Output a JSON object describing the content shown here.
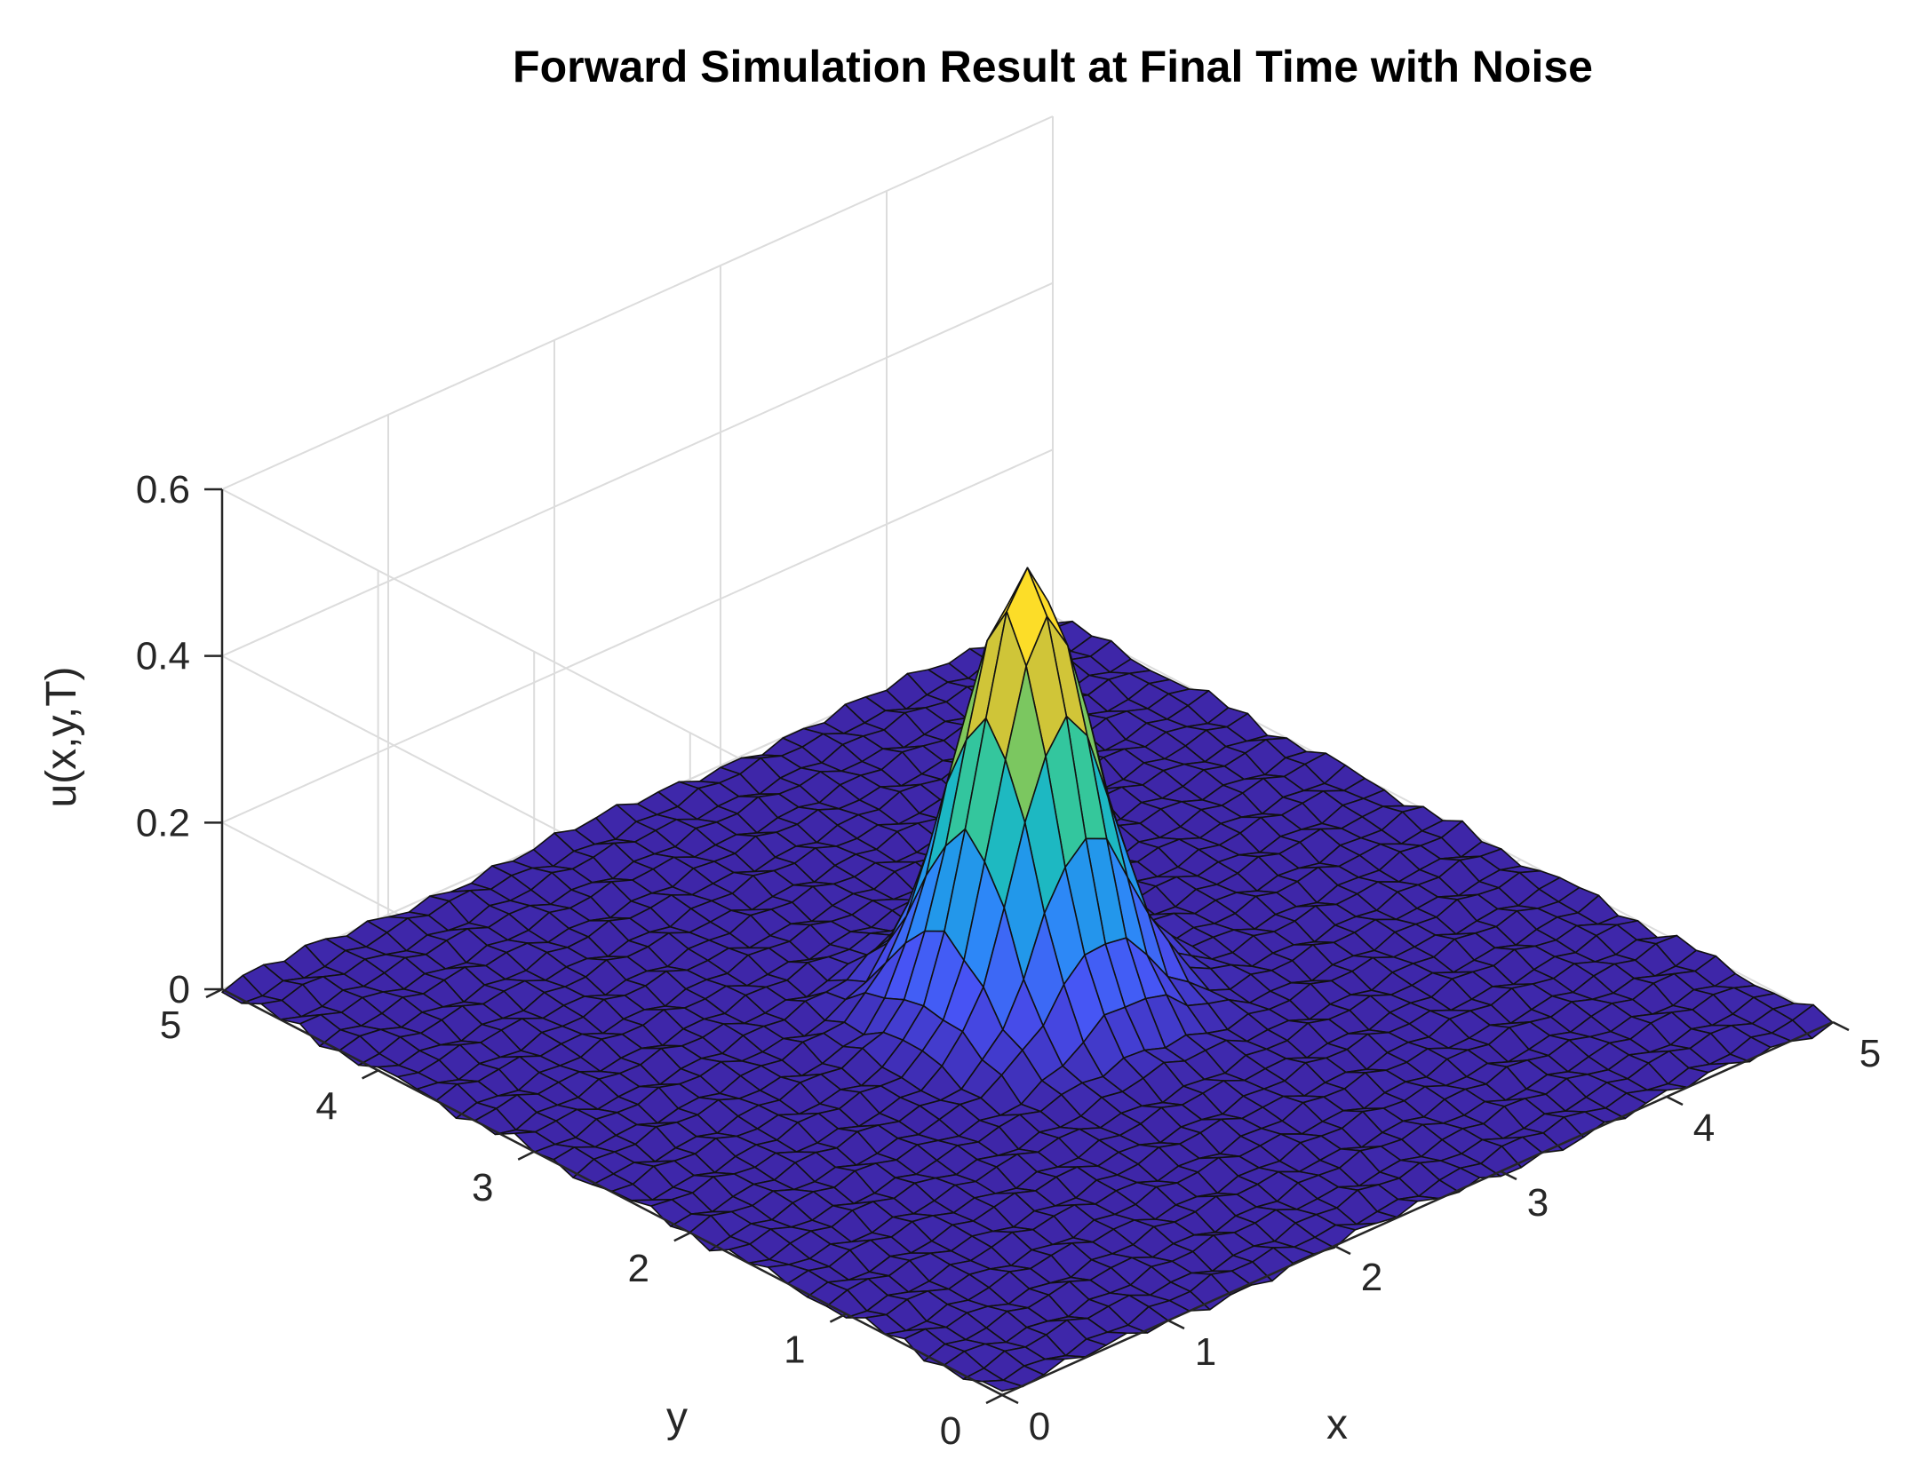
{
  "chart_data": {
    "type": "surface",
    "title": "Forward Simulation Result at Final Time with Noise",
    "xlabel": "x",
    "ylabel": "y",
    "zlabel": "u(x,y,T)",
    "xlim": [
      0,
      5
    ],
    "ylim": [
      0,
      5
    ],
    "zlim": [
      0,
      0.6
    ],
    "x_ticks": [
      "0",
      "1",
      "2",
      "3",
      "4",
      "5"
    ],
    "y_ticks": [
      "0",
      "1",
      "2",
      "3",
      "4",
      "5"
    ],
    "z_ticks": [
      "0",
      "0.2",
      "0.4",
      "0.6"
    ],
    "grid": true,
    "colormap": "parula",
    "grid_points": 41,
    "surface": {
      "shape": "gaussian-peak",
      "peak_value": 0.52,
      "center": [
        2.5,
        2.5
      ],
      "sigma": 0.3,
      "noise_amplitude": 0.01
    }
  }
}
